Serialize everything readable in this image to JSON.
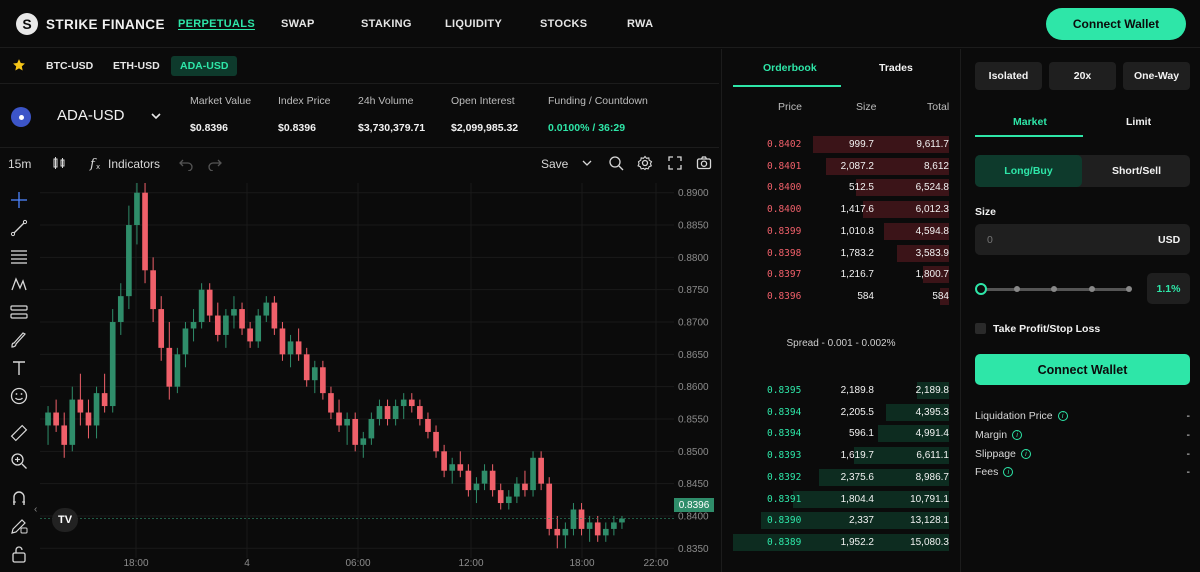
{
  "brand": {
    "name": "STRIKE FINANCE",
    "logo_letter": "S"
  },
  "nav": {
    "items": [
      "PERPETUALS",
      "SWAP",
      "STAKING",
      "LIQUIDITY",
      "STOCKS",
      "RWA"
    ],
    "connect_wallet": "Connect Wallet"
  },
  "market_tabs": [
    "BTC-USD",
    "ETH-USD",
    "ADA-USD"
  ],
  "market": {
    "pair": "ADA-USD",
    "stats": [
      {
        "label": "Market Value",
        "value": "$0.8396"
      },
      {
        "label": "Index Price",
        "value": "$0.8396"
      },
      {
        "label": "24h Volume",
        "value": "$3,730,379.71"
      },
      {
        "label": "Open Interest",
        "value": "$2,099,985.32"
      },
      {
        "label": "Funding / Countdown",
        "value": "0.0100% / 36:29"
      }
    ]
  },
  "chart_toolbar": {
    "interval": "15m",
    "indicators": "Indicators",
    "save": "Save"
  },
  "chart_data": {
    "type": "candlestick",
    "current_price": "0.8396",
    "y_ticks": [
      "0.8900",
      "0.8850",
      "0.8800",
      "0.8750",
      "0.8700",
      "0.8650",
      "0.8600",
      "0.8550",
      "0.8500",
      "0.8450",
      "0.8400",
      "0.8350"
    ],
    "x_ticks": [
      "18:00",
      "4",
      "06:00",
      "12:00",
      "18:00",
      "22:00"
    ],
    "ylim": [
      0.8335,
      0.8915
    ],
    "candles": [
      [
        0.854,
        0.857,
        0.851,
        0.856
      ],
      [
        0.856,
        0.858,
        0.853,
        0.854
      ],
      [
        0.854,
        0.856,
        0.849,
        0.851
      ],
      [
        0.851,
        0.86,
        0.85,
        0.858
      ],
      [
        0.858,
        0.862,
        0.854,
        0.856
      ],
      [
        0.856,
        0.858,
        0.852,
        0.854
      ],
      [
        0.854,
        0.86,
        0.852,
        0.859
      ],
      [
        0.859,
        0.862,
        0.856,
        0.857
      ],
      [
        0.857,
        0.872,
        0.856,
        0.87
      ],
      [
        0.87,
        0.876,
        0.868,
        0.874
      ],
      [
        0.874,
        0.888,
        0.872,
        0.885
      ],
      [
        0.885,
        0.892,
        0.882,
        0.89
      ],
      [
        0.89,
        0.892,
        0.876,
        0.878
      ],
      [
        0.878,
        0.88,
        0.87,
        0.872
      ],
      [
        0.872,
        0.874,
        0.864,
        0.866
      ],
      [
        0.866,
        0.87,
        0.858,
        0.86
      ],
      [
        0.86,
        0.866,
        0.859,
        0.865
      ],
      [
        0.865,
        0.87,
        0.863,
        0.869
      ],
      [
        0.869,
        0.872,
        0.867,
        0.87
      ],
      [
        0.87,
        0.876,
        0.869,
        0.875
      ],
      [
        0.875,
        0.876,
        0.87,
        0.871
      ],
      [
        0.871,
        0.873,
        0.867,
        0.868
      ],
      [
        0.868,
        0.872,
        0.866,
        0.871
      ],
      [
        0.871,
        0.874,
        0.869,
        0.872
      ],
      [
        0.872,
        0.873,
        0.868,
        0.869
      ],
      [
        0.869,
        0.87,
        0.866,
        0.867
      ],
      [
        0.867,
        0.872,
        0.866,
        0.871
      ],
      [
        0.871,
        0.874,
        0.87,
        0.873
      ],
      [
        0.873,
        0.874,
        0.868,
        0.869
      ],
      [
        0.869,
        0.87,
        0.864,
        0.865
      ],
      [
        0.865,
        0.868,
        0.863,
        0.867
      ],
      [
        0.867,
        0.869,
        0.864,
        0.865
      ],
      [
        0.865,
        0.866,
        0.86,
        0.861
      ],
      [
        0.861,
        0.864,
        0.859,
        0.863
      ],
      [
        0.863,
        0.864,
        0.858,
        0.859
      ],
      [
        0.859,
        0.86,
        0.855,
        0.856
      ],
      [
        0.856,
        0.858,
        0.853,
        0.854
      ],
      [
        0.854,
        0.856,
        0.851,
        0.855
      ],
      [
        0.855,
        0.856,
        0.85,
        0.851
      ],
      [
        0.851,
        0.853,
        0.849,
        0.852
      ],
      [
        0.852,
        0.856,
        0.851,
        0.855
      ],
      [
        0.855,
        0.858,
        0.854,
        0.857
      ],
      [
        0.857,
        0.858,
        0.854,
        0.855
      ],
      [
        0.855,
        0.858,
        0.854,
        0.857
      ],
      [
        0.857,
        0.859,
        0.855,
        0.858
      ],
      [
        0.858,
        0.859,
        0.856,
        0.857
      ],
      [
        0.857,
        0.858,
        0.854,
        0.855
      ],
      [
        0.855,
        0.856,
        0.852,
        0.853
      ],
      [
        0.853,
        0.854,
        0.849,
        0.85
      ],
      [
        0.85,
        0.851,
        0.846,
        0.847
      ],
      [
        0.847,
        0.849,
        0.845,
        0.848
      ],
      [
        0.848,
        0.85,
        0.846,
        0.847
      ],
      [
        0.847,
        0.848,
        0.843,
        0.844
      ],
      [
        0.844,
        0.846,
        0.842,
        0.845
      ],
      [
        0.845,
        0.848,
        0.844,
        0.847
      ],
      [
        0.847,
        0.848,
        0.843,
        0.844
      ],
      [
        0.844,
        0.845,
        0.841,
        0.842
      ],
      [
        0.842,
        0.844,
        0.841,
        0.843
      ],
      [
        0.843,
        0.846,
        0.842,
        0.845
      ],
      [
        0.845,
        0.847,
        0.843,
        0.844
      ],
      [
        0.844,
        0.85,
        0.843,
        0.849
      ],
      [
        0.849,
        0.85,
        0.844,
        0.845
      ],
      [
        0.845,
        0.846,
        0.837,
        0.838
      ],
      [
        0.838,
        0.84,
        0.835,
        0.837
      ],
      [
        0.837,
        0.839,
        0.835,
        0.838
      ],
      [
        0.838,
        0.842,
        0.837,
        0.841
      ],
      [
        0.841,
        0.842,
        0.837,
        0.838
      ],
      [
        0.838,
        0.84,
        0.836,
        0.839
      ],
      [
        0.839,
        0.84,
        0.836,
        0.837
      ],
      [
        0.837,
        0.839,
        0.836,
        0.838
      ],
      [
        0.838,
        0.84,
        0.837,
        0.839
      ],
      [
        0.839,
        0.84,
        0.838,
        0.8396
      ]
    ]
  },
  "orderbook": {
    "tabs": [
      "Orderbook",
      "Trades"
    ],
    "headers": [
      "Price",
      "Size",
      "Total"
    ],
    "asks": [
      {
        "price": "0.8402",
        "size": "999.7",
        "total": "9,611.7",
        "depth": 0.63
      },
      {
        "price": "0.8401",
        "size": "2,087.2",
        "total": "8,612",
        "depth": 0.57
      },
      {
        "price": "0.8400",
        "size": "512.5",
        "total": "6,524.8",
        "depth": 0.43
      },
      {
        "price": "0.8400",
        "size": "1,417.6",
        "total": "6,012.3",
        "depth": 0.4
      },
      {
        "price": "0.8399",
        "size": "1,010.8",
        "total": "4,594.8",
        "depth": 0.3
      },
      {
        "price": "0.8398",
        "size": "1,783.2",
        "total": "3,583.9",
        "depth": 0.24
      },
      {
        "price": "0.8397",
        "size": "1,216.7",
        "total": "1,800.7",
        "depth": 0.12
      },
      {
        "price": "0.8396",
        "size": "584",
        "total": "584",
        "depth": 0.04
      }
    ],
    "spread": "Spread - 0.001 - 0.002%",
    "bids": [
      {
        "price": "0.8395",
        "size": "2,189.8",
        "total": "2,189.8",
        "depth": 0.15
      },
      {
        "price": "0.8394",
        "size": "2,205.5",
        "total": "4,395.3",
        "depth": 0.29
      },
      {
        "price": "0.8394",
        "size": "596.1",
        "total": "4,991.4",
        "depth": 0.33
      },
      {
        "price": "0.8393",
        "size": "1,619.7",
        "total": "6,611.1",
        "depth": 0.44
      },
      {
        "price": "0.8392",
        "size": "2,375.6",
        "total": "8,986.7",
        "depth": 0.6
      },
      {
        "price": "0.8391",
        "size": "1,804.4",
        "total": "10,791.1",
        "depth": 0.72
      },
      {
        "price": "0.8390",
        "size": "2,337",
        "total": "13,128.1",
        "depth": 0.87
      },
      {
        "price": "0.8389",
        "size": "1,952.2",
        "total": "15,080.3",
        "depth": 1.0
      }
    ]
  },
  "trade": {
    "margin_mode": "Isolated",
    "leverage": "20x",
    "position_mode": "One-Way",
    "order_tabs": [
      "Market",
      "Limit"
    ],
    "sides": [
      "Long/Buy",
      "Short/Sell"
    ],
    "size_label": "Size",
    "size_placeholder": "0",
    "size_unit": "USD",
    "size_percent": "1.1%",
    "slider_value_percent": 1.1,
    "tpsl_label": "Take Profit/Stop Loss",
    "connect_wallet": "Connect Wallet",
    "info": [
      {
        "label": "Liquidation Price",
        "value": "-"
      },
      {
        "label": "Margin",
        "value": "-"
      },
      {
        "label": "Slippage",
        "value": "-"
      },
      {
        "label": "Fees",
        "value": "-"
      }
    ]
  },
  "colors": {
    "accent": "#2ee6a8",
    "up": "#2f8d6a",
    "down": "#f0606a",
    "panel": "#1f1f1f"
  }
}
